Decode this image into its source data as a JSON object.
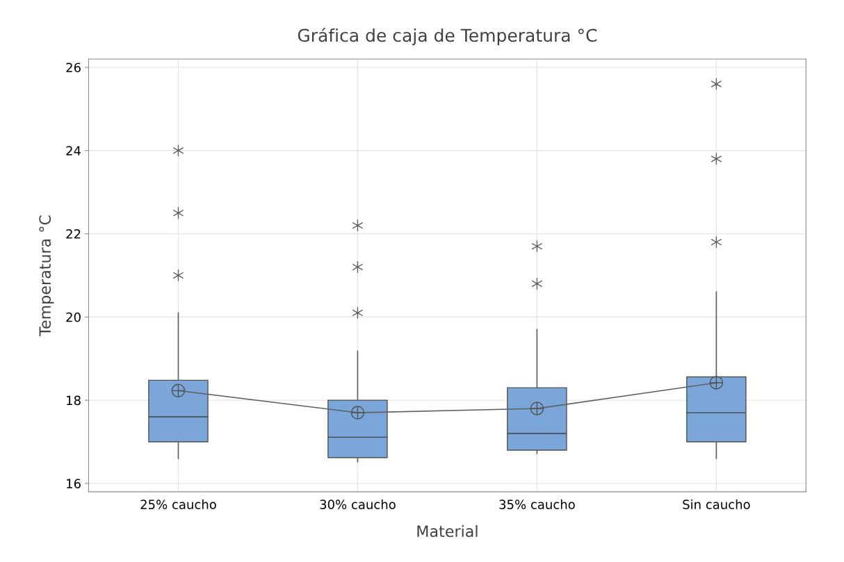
{
  "chart_data": {
    "type": "box",
    "title": "Gráfica de caja de Temperatura °C",
    "xlabel": "Material",
    "ylabel": "Temperatura °C",
    "categories": [
      "25% caucho",
      "30% caucho",
      "35% caucho",
      "Sin caucho"
    ],
    "color": "#7ba6d9",
    "boxes": [
      {
        "low": 16.6,
        "q1": 17.0,
        "median": 17.6,
        "q3": 18.48,
        "high": 20.1,
        "mean": 18.23,
        "outliers": [
          21.0,
          22.5,
          24.0
        ]
      },
      {
        "low": 16.52,
        "q1": 16.62,
        "median": 17.11,
        "q3": 18.0,
        "high": 19.18,
        "mean": 17.7,
        "outliers": [
          20.1,
          21.2,
          22.2
        ]
      },
      {
        "low": 16.72,
        "q1": 16.8,
        "median": 17.2,
        "q3": 18.3,
        "high": 19.7,
        "mean": 17.8,
        "outliers": [
          20.8,
          21.7
        ]
      },
      {
        "low": 16.6,
        "q1": 17.0,
        "median": 17.7,
        "q3": 18.56,
        "high": 20.6,
        "mean": 18.42,
        "outliers": [
          21.8,
          23.8,
          25.6
        ]
      }
    ],
    "series": [
      {
        "type": "line",
        "color": "#606060",
        "values": [
          18.23,
          17.7,
          17.8,
          18.42
        ]
      }
    ],
    "ylim": [
      15.8,
      26.2
    ],
    "yticks": [
      16,
      18,
      20,
      22,
      24,
      26
    ],
    "grid": true
  }
}
